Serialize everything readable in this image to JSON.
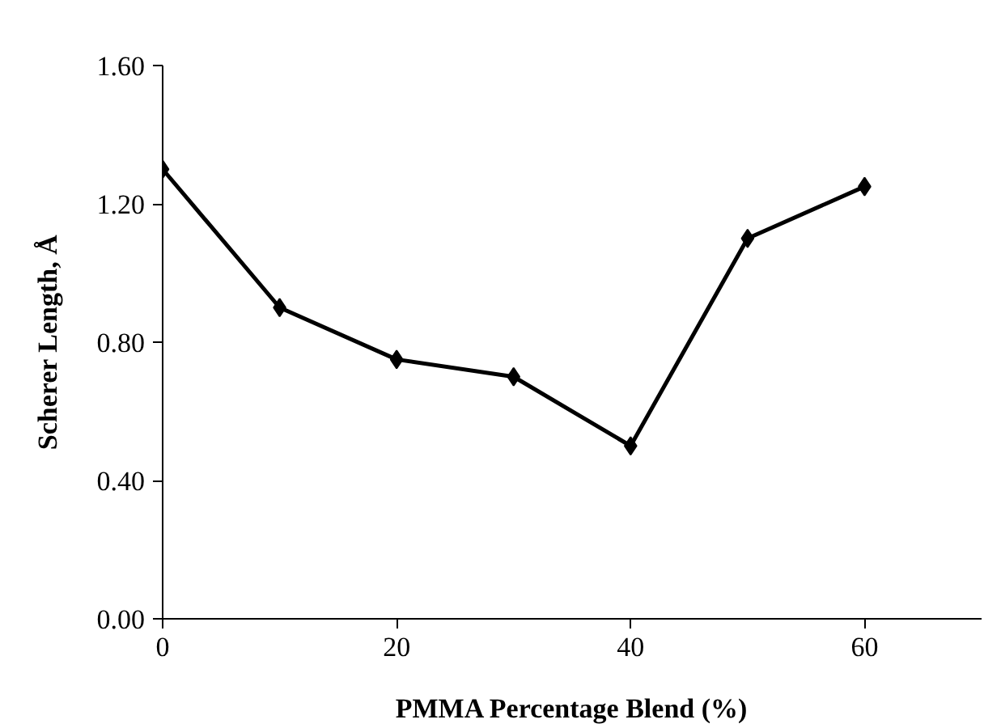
{
  "chart_data": {
    "type": "line",
    "xlabel": "PMMA Percentage Blend (%)",
    "ylabel": "Scherer Length, Å",
    "x": [
      0,
      10,
      20,
      30,
      40,
      50,
      60
    ],
    "series": [
      {
        "color": "#000000",
        "values": [
          1.3,
          0.9,
          0.75,
          0.7,
          0.5,
          1.1,
          1.25
        ]
      }
    ],
    "xlim": [
      0,
      70
    ],
    "xticks": [
      0,
      20,
      40,
      60
    ],
    "ylim": [
      0,
      1.6
    ],
    "yticks": [
      {
        "value": 0,
        "label": "0.00"
      },
      {
        "value": 0.4,
        "label": "0.40"
      },
      {
        "value": 0.8,
        "label": "0.80"
      },
      {
        "value": 1.2,
        "label": "1.20"
      },
      {
        "value": 1.6,
        "label": "1.60"
      }
    ],
    "grid": false,
    "marker": "diamond",
    "line_style": "solid"
  }
}
